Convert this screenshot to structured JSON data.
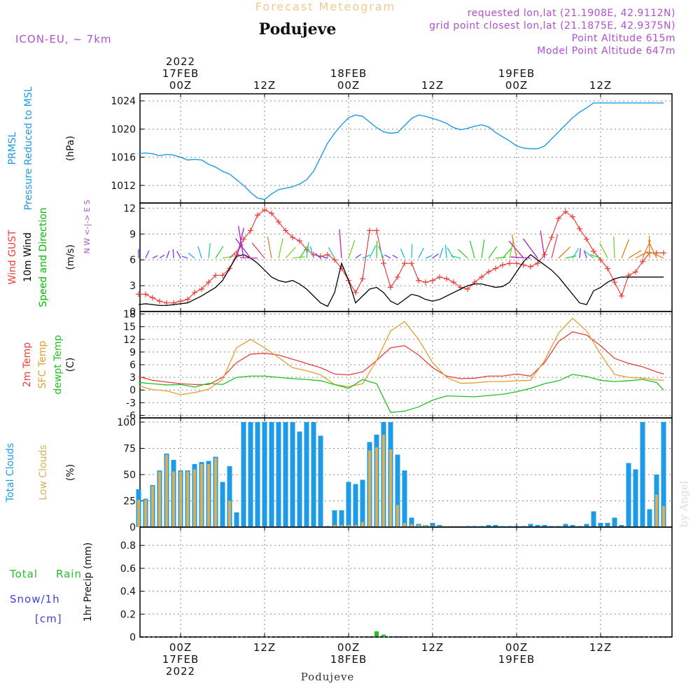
{
  "header": {
    "title": "Forecast Meteogram",
    "location": "Poduj­eve",
    "model": "ICON-EU, ~ 7km",
    "requested": "requested lon,lat (21.1908E, 42.9112N)",
    "gridpoint": "grid point closest lon,lat (21.1875E, 42.9375N)",
    "point_alt": "Point Altitude 615m",
    "model_alt": "Model Point Altitude 647m",
    "footer_location": "Podujeve",
    "watermark": "by Angel"
  },
  "time_axis": {
    "top_labels": [
      {
        "hour": 0,
        "lines": [
          "2022",
          "17FEB",
          "00Z"
        ]
      },
      {
        "hour": 12,
        "lines": [
          "12Z"
        ]
      },
      {
        "hour": 24,
        "lines": [
          "18FEB",
          "00Z"
        ]
      },
      {
        "hour": 36,
        "lines": [
          "12Z"
        ]
      },
      {
        "hour": 48,
        "lines": [
          "19FEB",
          "00Z"
        ]
      },
      {
        "hour": 60,
        "lines": [
          "12Z"
        ]
      }
    ],
    "bottom_labels": [
      {
        "hour": 0,
        "lines": [
          "00Z",
          "17FEB",
          "2022"
        ]
      },
      {
        "hour": 12,
        "lines": [
          "12Z"
        ]
      },
      {
        "hour": 24,
        "lines": [
          "00Z",
          "18FEB"
        ]
      },
      {
        "hour": 36,
        "lines": [
          "12Z"
        ]
      },
      {
        "hour": 48,
        "lines": [
          "00Z",
          "19FEB"
        ]
      },
      {
        "hour": 60,
        "lines": [
          "12Z"
        ]
      }
    ]
  },
  "colors": {
    "pressure": "#1e9be6",
    "gust": "#e8403c",
    "wind": "#000000",
    "dir_label": "#00bb00",
    "temp": "#e8403c",
    "sfc": "#e0a030",
    "dew": "#22c022",
    "total_clouds": "#1e9be6",
    "low_clouds": "#d4b060",
    "rain": "#22c022",
    "snow": "#4040e0",
    "compass": "#b050d0",
    "header": "#b050d0",
    "title": "#f0c890"
  },
  "chart_data": [
    {
      "type": "line",
      "panel": "pressure",
      "ylabel": [
        "PRMSL",
        "Pressure Reduced to MSL"
      ],
      "unit": "(hPa)",
      "yticks": [
        1012,
        1016,
        1020,
        1024
      ],
      "ylim": [
        1009.5,
        1025
      ],
      "series": [
        {
          "name": "PRMSL",
          "x": [
            0,
            1,
            2,
            3,
            4,
            5,
            6,
            7,
            8,
            9,
            10,
            11,
            12,
            13,
            14,
            15,
            16,
            17,
            18,
            19,
            20,
            21,
            22,
            23,
            24,
            25,
            26,
            27,
            28,
            29,
            30,
            31,
            32,
            33,
            34,
            35,
            36,
            37,
            38,
            39,
            40,
            41,
            42,
            43,
            44,
            45,
            46,
            47,
            48,
            49,
            50,
            51,
            52,
            53,
            54,
            55,
            56,
            57,
            58,
            59,
            60,
            61,
            62,
            63,
            64,
            65,
            66,
            67,
            68,
            69,
            70,
            71,
            72,
            73,
            74,
            75
          ],
          "values": [
            1016.5,
            1016.6,
            1016.5,
            1016.2,
            1016.4,
            1016.3,
            1016.0,
            1015.6,
            1015.7,
            1015.6,
            1015.0,
            1014.6,
            1014.0,
            1013.6,
            1012.8,
            1012.0,
            1011.0,
            1010.2,
            1010.0,
            1010.8,
            1011.4,
            1011.6,
            1011.8,
            1012.2,
            1012.8,
            1014.0,
            1016.0,
            1018.0,
            1019.4,
            1020.6,
            1021.6,
            1022.0,
            1021.8,
            1021.0,
            1020.2,
            1019.6,
            1019.4,
            1019.5,
            1020.5,
            1021.5,
            1022.0,
            1021.8,
            1021.5,
            1021.2,
            1020.8,
            1020.2,
            1019.9,
            1020.1,
            1020.4,
            1020.6,
            1020.3,
            1019.5,
            1018.9,
            1018.3,
            1017.6,
            1017.3,
            1017.2,
            1017.2,
            1017.6,
            1018.6,
            1019.6,
            1020.6,
            1021.6,
            1022.4,
            1023.0,
            1023.7,
            1023.7,
            1023.7,
            1023.7,
            1023.7,
            1023.7,
            1023.7,
            1023.7,
            1023.7,
            1023.7,
            1023.7
          ]
        }
      ]
    },
    {
      "type": "line",
      "panel": "wind",
      "ylabel": [
        "Wind GUST",
        "10m Wind",
        "Speed and Direction"
      ],
      "unit": "(m/s)",
      "compass": [
        "N",
        "W <-|-> E",
        "S"
      ],
      "yticks": [
        0,
        3,
        6,
        9,
        12
      ],
      "ylim": [
        0,
        12.6
      ],
      "series": [
        {
          "name": "Wind GUST",
          "marker": "+",
          "x": [
            0,
            1,
            2,
            3,
            4,
            5,
            6,
            7,
            8,
            9,
            10,
            11,
            12,
            13,
            14,
            15,
            16,
            17,
            18,
            19,
            20,
            21,
            22,
            23,
            24,
            25,
            26,
            27,
            28,
            29,
            30,
            31,
            32,
            33,
            34,
            35,
            36,
            37,
            38,
            39,
            40,
            41,
            42,
            43,
            44,
            45,
            46,
            47,
            48,
            49,
            50,
            51,
            52,
            53,
            54,
            55,
            56,
            57,
            58,
            59,
            60,
            61,
            62,
            63,
            64,
            65,
            66,
            67,
            68,
            69,
            70,
            71,
            72,
            73,
            74,
            75
          ],
          "values": [
            2.0,
            2.0,
            1.6,
            1.2,
            1.0,
            1.0,
            1.2,
            1.4,
            2.2,
            2.6,
            3.4,
            4.2,
            4.2,
            5.0,
            6.6,
            8.4,
            9.4,
            11.2,
            11.8,
            11.4,
            10.4,
            9.4,
            8.6,
            8.2,
            7.2,
            6.6,
            6.4,
            6.6,
            6.0,
            5.0,
            3.6,
            2.2,
            3.8,
            9.4,
            9.4,
            5.6,
            2.8,
            4.0,
            5.6,
            5.6,
            3.6,
            3.4,
            3.6,
            4.0,
            3.8,
            3.4,
            2.8,
            2.6,
            3.4,
            4.0,
            4.6,
            5.0,
            5.4,
            5.6,
            5.6,
            5.4,
            5.2,
            5.6,
            6.6,
            8.6,
            10.8,
            11.6,
            11.0,
            9.6,
            8.4,
            7.0,
            6.0,
            5.0,
            3.4,
            1.8,
            4.2,
            4.6,
            5.8,
            6.8,
            6.8,
            6.8
          ]
        },
        {
          "name": "10m Wind",
          "x": [
            0,
            1,
            2,
            3,
            4,
            5,
            6,
            7,
            8,
            9,
            10,
            11,
            12,
            13,
            14,
            15,
            16,
            17,
            18,
            19,
            20,
            21,
            22,
            23,
            24,
            25,
            26,
            27,
            28,
            29,
            30,
            31,
            32,
            33,
            34,
            35,
            36,
            37,
            38,
            39,
            40,
            41,
            42,
            43,
            44,
            45,
            46,
            47,
            48,
            49,
            50,
            51,
            52,
            53,
            54,
            55,
            56,
            57,
            58,
            59,
            60,
            61,
            62,
            63,
            64,
            65,
            66,
            67,
            68,
            69,
            70,
            71,
            72,
            73,
            74,
            75
          ],
          "values": [
            0.8,
            0.9,
            0.8,
            0.7,
            0.7,
            0.8,
            0.9,
            1.0,
            1.4,
            1.8,
            2.3,
            2.8,
            3.6,
            5.0,
            6.4,
            6.6,
            6.2,
            5.6,
            4.8,
            4.0,
            3.6,
            3.4,
            3.6,
            3.2,
            2.6,
            1.8,
            1.0,
            0.6,
            2.2,
            5.6,
            3.6,
            1.0,
            1.8,
            2.6,
            2.8,
            2.2,
            1.2,
            0.8,
            1.4,
            2.0,
            1.8,
            1.4,
            1.2,
            1.4,
            1.8,
            2.2,
            2.6,
            3.0,
            3.2,
            3.2,
            3.0,
            2.8,
            2.9,
            3.4,
            4.6,
            5.8,
            6.6,
            6.0,
            5.4,
            4.8,
            4.0,
            3.0,
            2.0,
            1.0,
            0.8,
            2.4,
            2.8,
            3.4,
            3.8,
            4.0,
            4.0,
            4.0,
            4.0,
            4.0,
            4.0,
            4.0
          ]
        }
      ]
    },
    {
      "type": "line",
      "panel": "temperature",
      "ylabel": [
        "2m Temp",
        "SFC Temp",
        "dewpt Temp"
      ],
      "unit": "(C)",
      "yticks": [
        -6,
        -3,
        0,
        3,
        6,
        9,
        12,
        15,
        18
      ],
      "ylim": [
        -6.6,
        18.6
      ],
      "series": [
        {
          "name": "2m Temp",
          "x": [
            0,
            2,
            4,
            6,
            8,
            10,
            12,
            14,
            16,
            18,
            20,
            22,
            24,
            26,
            28,
            30,
            32,
            34,
            36,
            38,
            40,
            42,
            44,
            46,
            48,
            50,
            52,
            54,
            56,
            58,
            60,
            62,
            64,
            66,
            68,
            70,
            72,
            74,
            75
          ],
          "values": [
            3.2,
            2.3,
            1.9,
            1.5,
            1.3,
            1.3,
            3.0,
            6.5,
            8.5,
            8.7,
            8.3,
            7.3,
            6.3,
            5.3,
            3.8,
            3.6,
            4.3,
            7.0,
            10.0,
            10.5,
            8.3,
            5.3,
            3.3,
            2.7,
            2.8,
            3.3,
            3.3,
            3.8,
            3.3,
            6.5,
            11.5,
            13.8,
            13.0,
            10.5,
            7.5,
            6.3,
            5.5,
            4.3,
            3.8
          ]
        },
        {
          "name": "SFC Temp",
          "x": [
            0,
            2,
            4,
            6,
            8,
            10,
            12,
            14,
            16,
            18,
            20,
            22,
            24,
            26,
            28,
            30,
            32,
            34,
            36,
            38,
            40,
            42,
            44,
            46,
            48,
            50,
            52,
            54,
            56,
            58,
            60,
            62,
            64,
            66,
            68,
            70,
            72,
            74,
            75
          ],
          "values": [
            1.0,
            0.1,
            -0.2,
            -1.1,
            -0.6,
            0.2,
            2.5,
            10.0,
            12.0,
            10.0,
            7.7,
            5.3,
            4.6,
            3.6,
            1.3,
            0.8,
            1.5,
            7.0,
            14.0,
            16.2,
            12.0,
            6.5,
            3.0,
            1.6,
            1.7,
            2.0,
            2.0,
            2.2,
            2.3,
            7.0,
            13.5,
            17.0,
            14.0,
            8.5,
            3.7,
            3.0,
            2.8,
            2.4,
            2.3
          ]
        },
        {
          "name": "dewpt Temp",
          "x": [
            0,
            2,
            4,
            6,
            8,
            10,
            12,
            14,
            16,
            18,
            20,
            22,
            24,
            26,
            28,
            30,
            32,
            34,
            36,
            38,
            40,
            42,
            44,
            46,
            48,
            50,
            52,
            54,
            56,
            58,
            60,
            62,
            64,
            66,
            68,
            70,
            72,
            74,
            75
          ],
          "values": [
            1.8,
            1.5,
            1.2,
            1.3,
            0.7,
            1.6,
            1.3,
            3.0,
            3.3,
            3.3,
            3.0,
            2.7,
            2.5,
            2.2,
            1.3,
            0.4,
            2.5,
            1.5,
            -5.3,
            -5.0,
            -4.0,
            -2.4,
            -1.4,
            -1.5,
            -1.6,
            -1.3,
            -1.0,
            -0.4,
            0.4,
            1.5,
            2.2,
            3.7,
            3.2,
            2.3,
            2.0,
            2.2,
            2.5,
            1.8,
            0.0
          ]
        }
      ]
    },
    {
      "type": "bar",
      "panel": "clouds",
      "ylabel": [
        "Total Clouds",
        "Low Clouds"
      ],
      "unit": "(%)",
      "yticks": [
        0,
        25,
        50,
        75,
        100
      ],
      "ylim": [
        0,
        104
      ],
      "x": [
        0,
        1,
        2,
        3,
        4,
        5,
        6,
        7,
        8,
        9,
        10,
        11,
        12,
        13,
        14,
        15,
        16,
        17,
        18,
        19,
        20,
        21,
        22,
        23,
        24,
        25,
        26,
        27,
        28,
        29,
        30,
        31,
        32,
        33,
        34,
        35,
        36,
        37,
        38,
        39,
        40,
        41,
        42,
        43,
        44,
        45,
        46,
        47,
        48,
        49,
        50,
        51,
        52,
        53,
        54,
        55,
        56,
        57,
        58,
        59,
        60,
        61,
        62,
        63,
        64,
        65,
        66,
        67,
        68,
        69,
        70,
        71,
        72,
        73,
        74,
        75
      ],
      "series": [
        {
          "name": "Total Clouds",
          "values": [
            36,
            27,
            40,
            54,
            70,
            64,
            54,
            54,
            60,
            62,
            63,
            67,
            43,
            58,
            14,
            100,
            100,
            100,
            100,
            100,
            100,
            100,
            100,
            91,
            100,
            100,
            87,
            1,
            16,
            16,
            43,
            41,
            45,
            81,
            88,
            100,
            100,
            69,
            54,
            9,
            3,
            2,
            4,
            2,
            1,
            1,
            1,
            1,
            1,
            1,
            2,
            2,
            1,
            1,
            1,
            1,
            3,
            2,
            2,
            1,
            1,
            3,
            2,
            1,
            3,
            15,
            4,
            4,
            9,
            2,
            61,
            55,
            100,
            17,
            50,
            100
          ]
        },
        {
          "name": "Low Clouds",
          "values": [
            26,
            26,
            39,
            53,
            69,
            53,
            53,
            53,
            55,
            60,
            60,
            66,
            0,
            25,
            0,
            0,
            0,
            0,
            0,
            0,
            0,
            0,
            0,
            0,
            0,
            0,
            0,
            0,
            2,
            2,
            2,
            2,
            5,
            73,
            76,
            88,
            74,
            21,
            4,
            3,
            2,
            2,
            1,
            1,
            1,
            1,
            1,
            0,
            0,
            0,
            0,
            0,
            0,
            0,
            0,
            0,
            0,
            0,
            0,
            0,
            0,
            0,
            0,
            0,
            0,
            0,
            0,
            0,
            0,
            0,
            0,
            0,
            0,
            0,
            31,
            20
          ]
        }
      ]
    },
    {
      "type": "bar",
      "panel": "precipitation",
      "ylabel": [
        "1hr Precip (mm)"
      ],
      "legend": [
        "Total",
        "Rain",
        "Snow/1h",
        "[cm]"
      ],
      "yticks": [
        0,
        0.2,
        0.4,
        0.6,
        0.8
      ],
      "ylim": [
        0,
        0.96
      ],
      "series": [
        {
          "name": "Rain",
          "x": [
            34,
            35
          ],
          "values": [
            0.05,
            0.02
          ]
        }
      ]
    }
  ]
}
